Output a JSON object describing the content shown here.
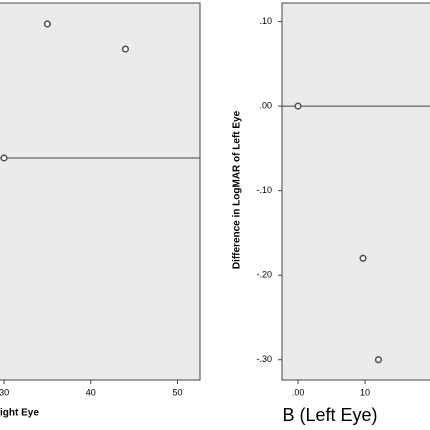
{
  "chart_data": [
    {
      "type": "scatter",
      "x_label": "ight Eye",
      "x": [
        35,
        44,
        30
      ],
      "y": [
        0.16,
        0.13,
        0
      ],
      "xlim": [
        29.3,
        52.6
      ],
      "ylim": [
        -0.265,
        0.185
      ],
      "xticks": [
        30,
        40,
        50
      ],
      "reference_line": 0,
      "color": "#555555"
    },
    {
      "type": "scatter",
      "title": "B (Left Eye)",
      "y_label": "Difference in LogMAR of Left Eye",
      "x": [
        0,
        9.7,
        12
      ],
      "y": [
        0,
        -0.18,
        -0.3
      ],
      "xlim": [
        -2.4,
        20
      ],
      "ylim": [
        -0.324,
        0.122
      ],
      "xticks": [
        {
          "value": 0,
          "label": ".00"
        },
        10
      ],
      "yticks": [
        {
          "value": 0.1,
          "label": ".10"
        },
        {
          "value": 0,
          "label": ".00"
        },
        {
          "value": -0.1,
          "label": "-.10"
        },
        {
          "value": -0.2,
          "label": "-.20"
        },
        {
          "value": -0.3,
          "label": "-.30"
        }
      ],
      "reference_line": 0,
      "color": "#555555"
    }
  ]
}
